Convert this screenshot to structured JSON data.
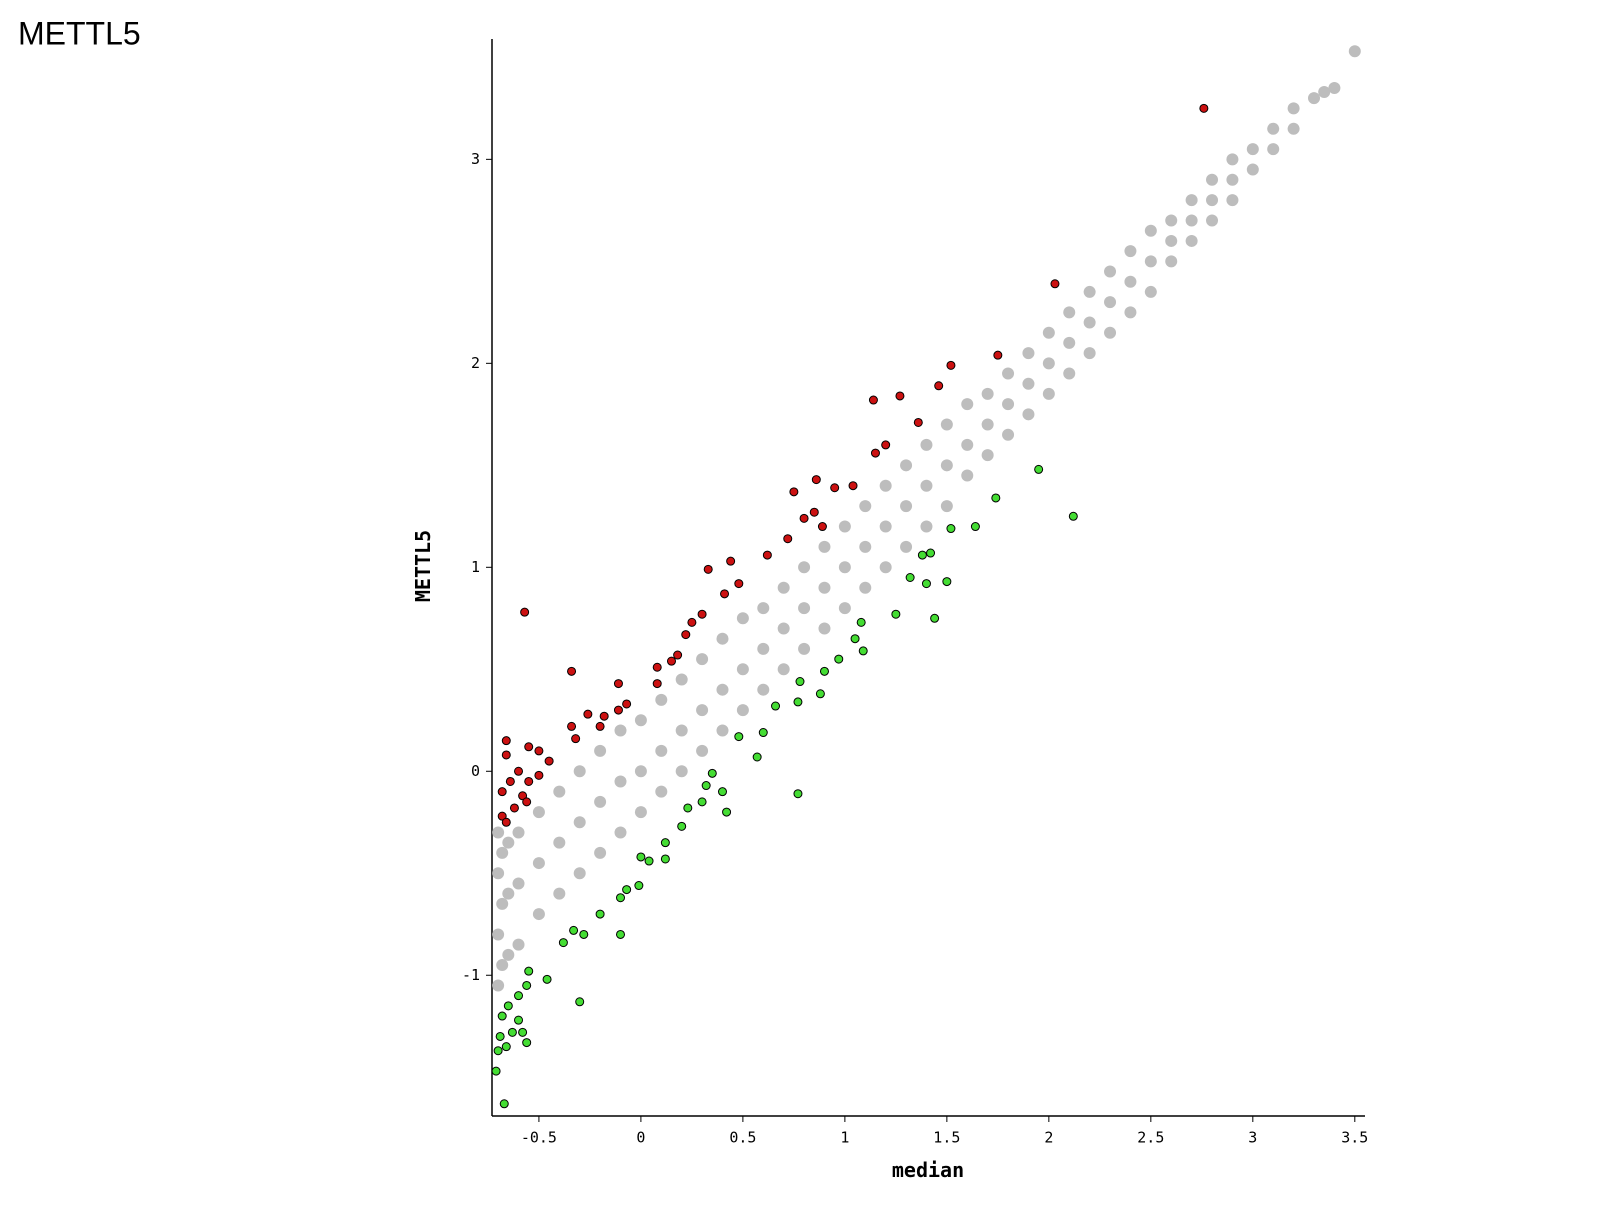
{
  "title": "METTL5",
  "chart_data": {
    "type": "scatter",
    "xlabel": "median",
    "ylabel": "METTL5",
    "xlim": [
      -0.73,
      3.55
    ],
    "ylim": [
      -1.69,
      3.59
    ],
    "xticks": [
      -0.5,
      0,
      0.5,
      1,
      1.5,
      2,
      2.5,
      3,
      3.5
    ],
    "yticks": [
      -1,
      0,
      1,
      2,
      3
    ],
    "series": [
      {
        "color": "#bdbdbd",
        "outline": false,
        "x": [
          -0.7,
          -0.7,
          -0.7,
          -0.7,
          -0.68,
          -0.68,
          -0.68,
          -0.65,
          -0.65,
          -0.65,
          -0.6,
          -0.6,
          -0.6,
          -0.5,
          -0.5,
          -0.5,
          -0.4,
          -0.4,
          -0.4,
          -0.3,
          -0.3,
          -0.3,
          -0.2,
          -0.2,
          -0.2,
          -0.1,
          -0.1,
          -0.1,
          0,
          0,
          0,
          0.1,
          0.1,
          0.1,
          0.2,
          0.2,
          0.2,
          0.3,
          0.3,
          0.3,
          0.4,
          0.4,
          0.4,
          0.5,
          0.5,
          0.5,
          0.6,
          0.6,
          0.6,
          0.7,
          0.7,
          0.7,
          0.8,
          0.8,
          0.8,
          0.9,
          0.9,
          0.9,
          1.0,
          1.0,
          1.0,
          1.1,
          1.1,
          1.1,
          1.2,
          1.2,
          1.2,
          1.3,
          1.3,
          1.3,
          1.4,
          1.4,
          1.4,
          1.5,
          1.5,
          1.5,
          1.6,
          1.6,
          1.6,
          1.7,
          1.7,
          1.7,
          1.8,
          1.8,
          1.8,
          1.9,
          1.9,
          1.9,
          2.0,
          2.0,
          2.0,
          2.1,
          2.1,
          2.1,
          2.2,
          2.2,
          2.2,
          2.3,
          2.3,
          2.3,
          2.4,
          2.4,
          2.4,
          2.5,
          2.5,
          2.5,
          2.6,
          2.6,
          2.6,
          2.7,
          2.7,
          2.7,
          2.8,
          2.8,
          2.8,
          2.9,
          2.9,
          2.9,
          3.0,
          3.0,
          3.1,
          3.1,
          3.2,
          3.2,
          3.3,
          3.35,
          3.4,
          3.5
        ],
        "values": [
          -1.05,
          -0.8,
          -0.5,
          -0.3,
          -0.95,
          -0.65,
          -0.4,
          -0.9,
          -0.6,
          -0.35,
          -0.85,
          -0.55,
          -0.3,
          -0.7,
          -0.45,
          -0.2,
          -0.6,
          -0.35,
          -0.1,
          -0.5,
          -0.25,
          0.0,
          -0.4,
          -0.15,
          0.1,
          -0.3,
          -0.05,
          0.2,
          -0.2,
          0.0,
          0.25,
          -0.1,
          0.1,
          0.35,
          0.0,
          0.2,
          0.45,
          0.1,
          0.3,
          0.55,
          0.2,
          0.4,
          0.65,
          0.3,
          0.5,
          0.75,
          0.4,
          0.6,
          0.8,
          0.5,
          0.7,
          0.9,
          0.6,
          0.8,
          1.0,
          0.7,
          0.9,
          1.1,
          0.8,
          1.0,
          1.2,
          0.9,
          1.1,
          1.3,
          1.0,
          1.2,
          1.4,
          1.1,
          1.3,
          1.5,
          1.2,
          1.4,
          1.6,
          1.3,
          1.5,
          1.7,
          1.45,
          1.6,
          1.8,
          1.55,
          1.7,
          1.85,
          1.65,
          1.8,
          1.95,
          1.75,
          1.9,
          2.05,
          1.85,
          2.0,
          2.15,
          1.95,
          2.1,
          2.25,
          2.05,
          2.2,
          2.35,
          2.15,
          2.3,
          2.45,
          2.25,
          2.4,
          2.55,
          2.35,
          2.5,
          2.65,
          2.5,
          2.6,
          2.7,
          2.6,
          2.7,
          2.8,
          2.7,
          2.8,
          2.9,
          2.8,
          2.9,
          3.0,
          2.95,
          3.05,
          3.05,
          3.15,
          3.15,
          3.25,
          3.3,
          3.33,
          3.35,
          3.53
        ]
      },
      {
        "color": "#cc1111",
        "outline": true,
        "x": [
          -0.57,
          2.76,
          2.03,
          1.75,
          1.52,
          1.46,
          1.14,
          1.27,
          1.36,
          1.2,
          1.15,
          0.86,
          0.75,
          0.85,
          0.8,
          0.72,
          0.62,
          0.44,
          0.33,
          0.48,
          0.41,
          0.3,
          0.25,
          0.22,
          0.18,
          0.15,
          0.08,
          0.08,
          -0.11,
          -0.34,
          -0.07,
          -0.11,
          -0.18,
          -0.26,
          -0.2,
          -0.34,
          -0.32,
          -0.5,
          -0.45,
          -0.55,
          -0.66,
          -0.66,
          -0.6,
          -0.55,
          -0.64,
          -0.68,
          -0.58,
          -0.62,
          -0.68,
          -0.66,
          -0.56,
          -0.5,
          0.95,
          1.04,
          0.89
        ],
        "values": [
          0.78,
          3.25,
          2.39,
          2.04,
          1.99,
          1.89,
          1.82,
          1.84,
          1.71,
          1.6,
          1.56,
          1.43,
          1.37,
          1.27,
          1.24,
          1.14,
          1.06,
          1.03,
          0.99,
          0.92,
          0.87,
          0.77,
          0.73,
          0.67,
          0.57,
          0.54,
          0.51,
          0.43,
          0.43,
          0.49,
          0.33,
          0.3,
          0.27,
          0.28,
          0.22,
          0.22,
          0.16,
          0.1,
          0.05,
          0.12,
          0.15,
          0.08,
          0.0,
          -0.05,
          -0.05,
          -0.1,
          -0.12,
          -0.18,
          -0.22,
          -0.25,
          -0.15,
          -0.02,
          1.39,
          1.4,
          1.2
        ]
      },
      {
        "color": "#44dd33",
        "outline": true,
        "x": [
          1.95,
          2.12,
          1.74,
          1.64,
          1.52,
          1.42,
          1.38,
          1.5,
          1.32,
          1.4,
          1.25,
          1.44,
          1.08,
          1.05,
          1.09,
          0.97,
          0.9,
          0.78,
          0.77,
          0.88,
          0.66,
          0.6,
          0.48,
          0.57,
          0.35,
          0.32,
          0.3,
          0.4,
          0.42,
          0.23,
          0.77,
          0.2,
          0.12,
          0.12,
          0.04,
          0.0,
          -0.01,
          -0.07,
          -0.1,
          -0.1,
          -0.2,
          -0.28,
          -0.33,
          -0.38,
          -0.3,
          -0.46,
          -0.55,
          -0.56,
          -0.6,
          -0.65,
          -0.68,
          -0.69,
          -0.7,
          -0.71,
          -0.67,
          -0.56,
          -0.58,
          -0.6,
          -0.63,
          -0.66
        ],
        "values": [
          1.48,
          1.25,
          1.34,
          1.2,
          1.19,
          1.07,
          1.06,
          0.93,
          0.95,
          0.92,
          0.77,
          0.75,
          0.73,
          0.65,
          0.59,
          0.55,
          0.49,
          0.44,
          0.34,
          0.38,
          0.32,
          0.19,
          0.17,
          0.07,
          -0.01,
          -0.07,
          -0.15,
          -0.1,
          -0.2,
          -0.18,
          -0.11,
          -0.27,
          -0.35,
          -0.43,
          -0.44,
          -0.42,
          -0.56,
          -0.58,
          -0.62,
          -0.8,
          -0.7,
          -0.8,
          -0.78,
          -0.84,
          -1.13,
          -1.02,
          -0.98,
          -1.05,
          -1.1,
          -1.15,
          -1.2,
          -1.3,
          -1.37,
          -1.47,
          -1.63,
          -1.33,
          -1.28,
          -1.22,
          -1.28,
          -1.35
        ]
      }
    ]
  }
}
